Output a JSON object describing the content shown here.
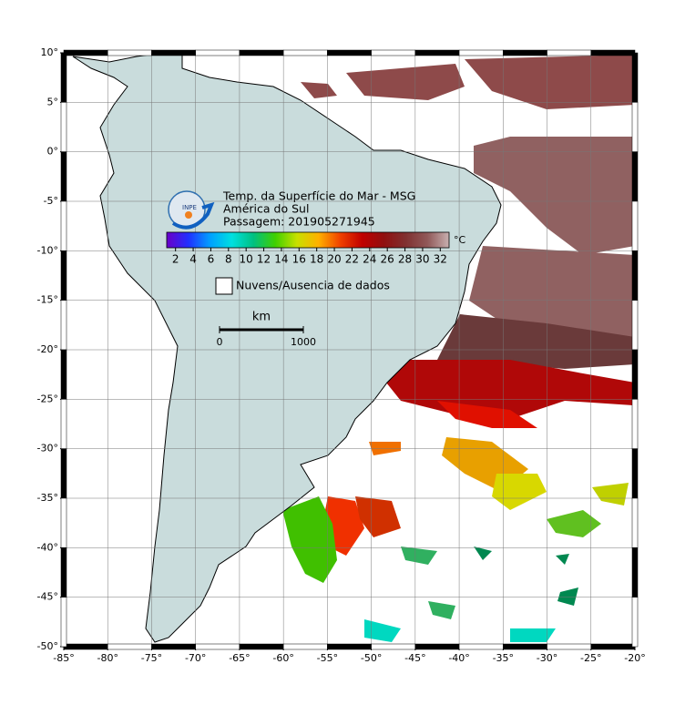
{
  "map": {
    "title_lines": [
      "Temp. da Superfície do Mar - MSG",
      "América do Sul",
      "Passagem: 201905271945"
    ],
    "logo_text": "INPE",
    "lon_range": [
      -85,
      -20
    ],
    "lat_range": [
      -50,
      10
    ],
    "lon_ticks": [
      {
        "value": -85,
        "label": "-85°"
      },
      {
        "value": -80,
        "label": "-80°"
      },
      {
        "value": -75,
        "label": "-75°"
      },
      {
        "value": -70,
        "label": "-70°"
      },
      {
        "value": -65,
        "label": "-65°"
      },
      {
        "value": -60,
        "label": "-60°"
      },
      {
        "value": -55,
        "label": "-55°"
      },
      {
        "value": -50,
        "label": "-50°"
      },
      {
        "value": -45,
        "label": "-45°"
      },
      {
        "value": -40,
        "label": "-40°"
      },
      {
        "value": -35,
        "label": "-35°"
      },
      {
        "value": -30,
        "label": "-30°"
      },
      {
        "value": -25,
        "label": "-25°"
      },
      {
        "value": -20,
        "label": "-20°"
      }
    ],
    "lat_ticks": [
      {
        "value": 10,
        "label": "10°"
      },
      {
        "value": 5,
        "label": "5°"
      },
      {
        "value": 0,
        "label": "0°"
      },
      {
        "value": -5,
        "label": "-5°"
      },
      {
        "value": -10,
        "label": "-10°"
      },
      {
        "value": -15,
        "label": "-15°"
      },
      {
        "value": -20,
        "label": "-20°"
      },
      {
        "value": -25,
        "label": "-25°"
      },
      {
        "value": -30,
        "label": "-30°"
      },
      {
        "value": -35,
        "label": "-35°"
      },
      {
        "value": -40,
        "label": "-40°"
      },
      {
        "value": -45,
        "label": "-45°"
      },
      {
        "value": -50,
        "label": "-50°"
      }
    ],
    "colorbar": {
      "range": [
        1,
        33
      ],
      "ticks": [
        2,
        4,
        6,
        8,
        10,
        12,
        14,
        16,
        18,
        20,
        22,
        24,
        26,
        28,
        30,
        32
      ],
      "unit": "°C",
      "colors": [
        "#6a00c8",
        "#2030ff",
        "#00a0ff",
        "#00e0e0",
        "#00c080",
        "#40d000",
        "#c8e000",
        "#ffb000",
        "#f04000",
        "#c00000",
        "#901010",
        "#803030",
        "#905858",
        "#c8b0b0"
      ]
    },
    "legend": "Nuvens/Ausencia de dados",
    "scale": {
      "unit": "km",
      "ticks": [
        0,
        1000
      ]
    }
  }
}
